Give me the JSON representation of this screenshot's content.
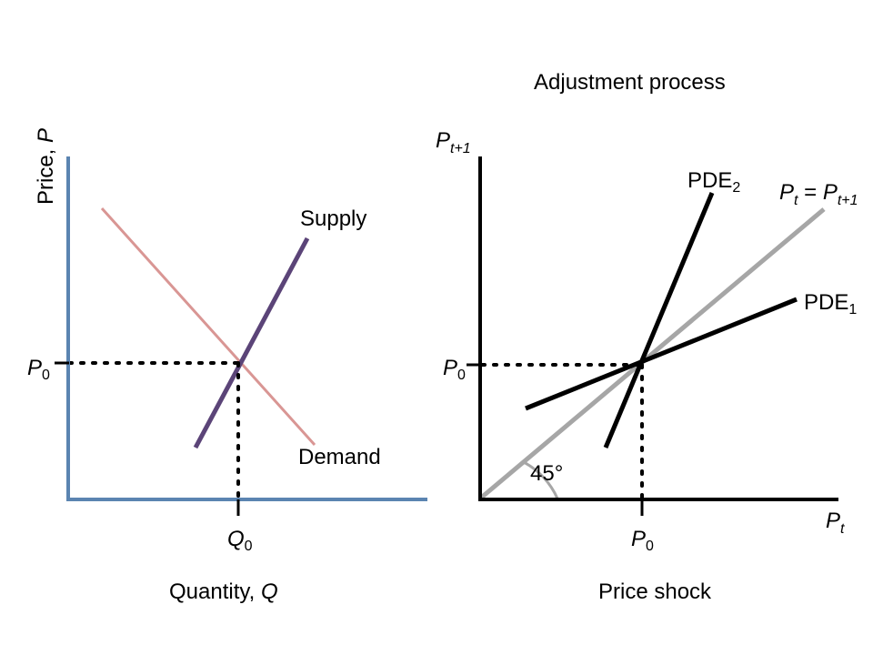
{
  "left_chart": {
    "ylabel": "Price, ",
    "ylabel_var": "P",
    "xlabel": "Quantity, ",
    "xlabel_var": "Q",
    "supply_label": "Supply",
    "demand_label": "Demand",
    "p0_label": "P",
    "p0_sub": "0",
    "q0_label": "Q",
    "q0_sub": "0",
    "colors": {
      "axes": "#5b84b1",
      "supply": "#5b4478",
      "demand": "#d99694"
    }
  },
  "right_chart": {
    "title": "Adjustment process",
    "xlabel": "Price shock",
    "yaxis_label": "P",
    "yaxis_sub": "t+1",
    "xaxis_label": "P",
    "xaxis_sub": "t",
    "pde2_label": "PDE",
    "pde2_sub": "2",
    "pde1_label": "PDE",
    "pde1_sub": "1",
    "eq_left": "P",
    "eq_left_sub": "t",
    "eq_mid": " = ",
    "eq_right": "P",
    "eq_right_sub": "t+1",
    "angle_label": "45°",
    "p0_y_label": "P",
    "p0_y_sub": "0",
    "p0_x_label": "P",
    "p0_x_sub": "0",
    "colors": {
      "axes": "#000000",
      "pde": "#000000",
      "diagonal": "#a6a6a6",
      "arc": "#a6a6a6"
    }
  }
}
